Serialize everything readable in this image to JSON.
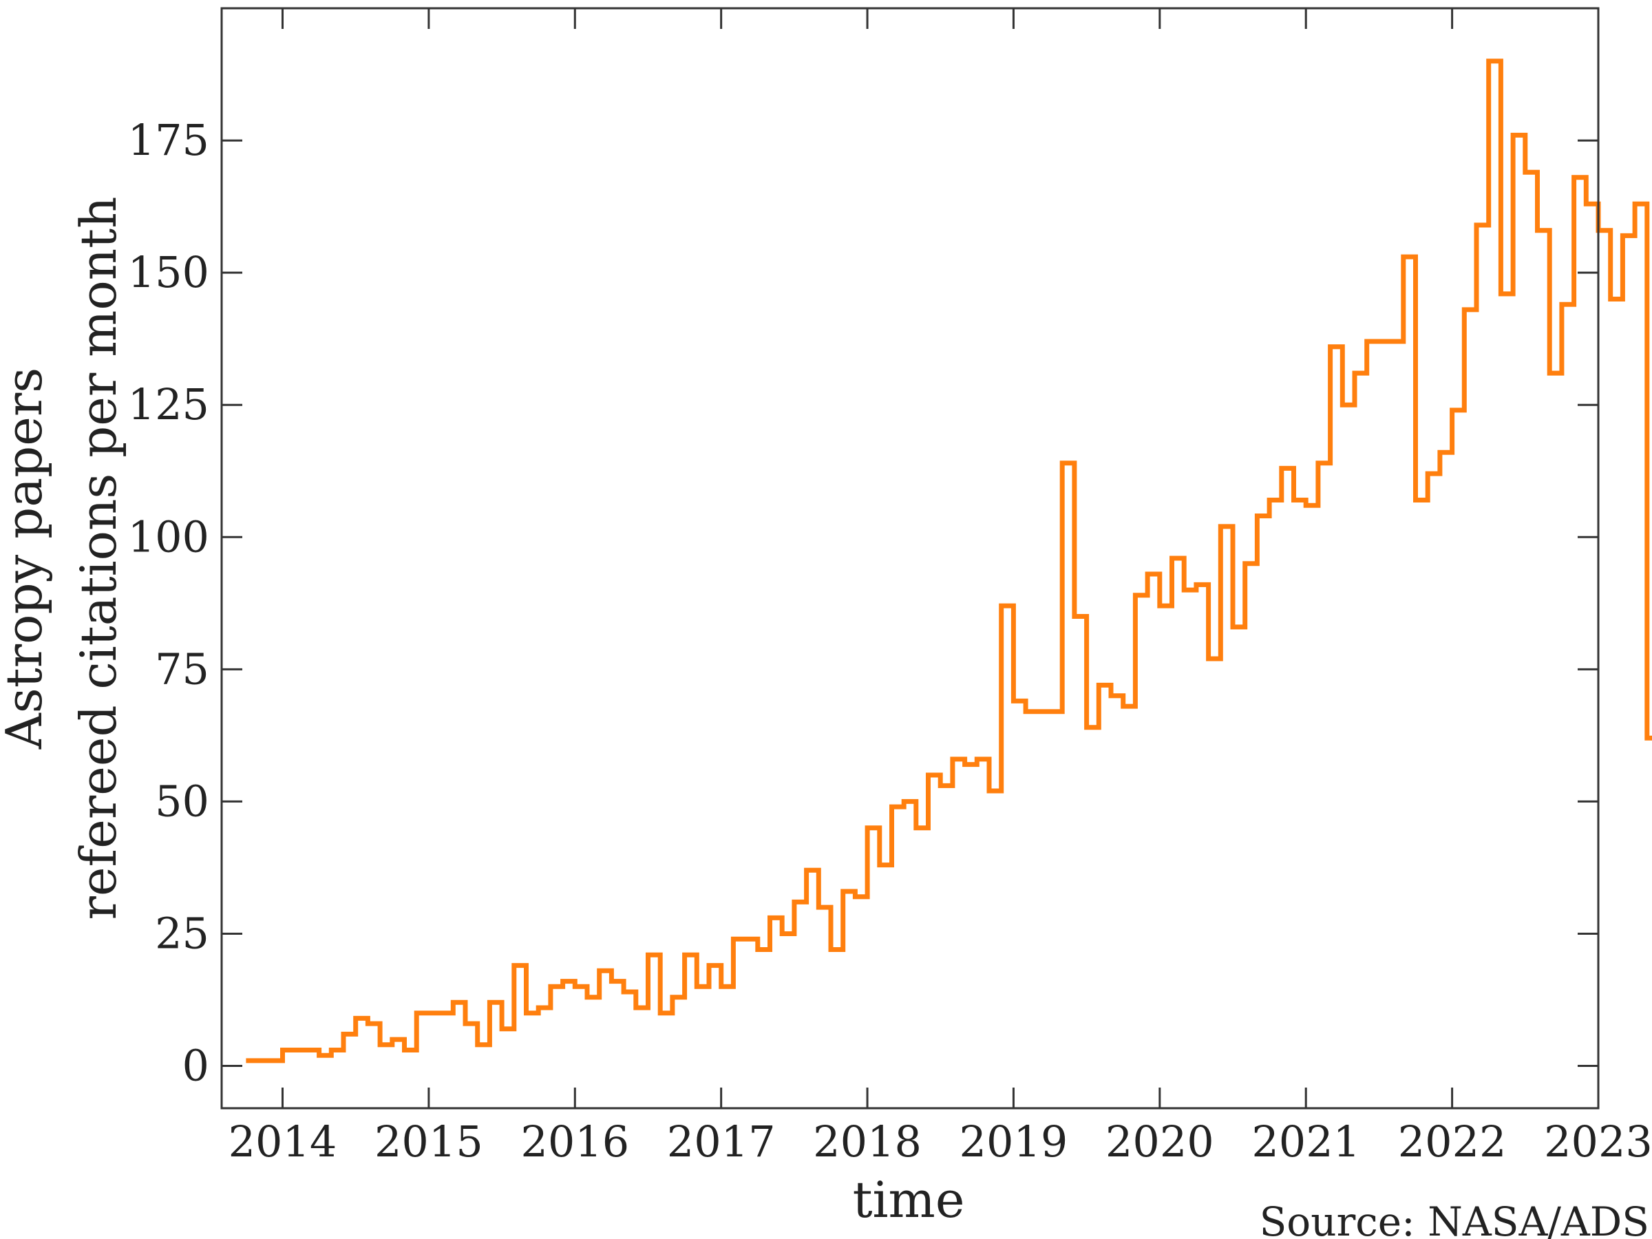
{
  "chart_data": {
    "type": "line",
    "drawstyle": "steps-post",
    "xlabel": "time",
    "ylabel_lines": [
      "Astropy papers",
      "refereed citations per month"
    ],
    "source": "Source: NASA/ADS",
    "x_ticks": [
      "2014",
      "2015",
      "2016",
      "2017",
      "2018",
      "2019",
      "2020",
      "2021",
      "2022",
      "2023"
    ],
    "y_ticks": [
      "0",
      "25",
      "50",
      "75",
      "100",
      "125",
      "150",
      "175"
    ],
    "xlim": [
      "2013-08",
      "2023-01"
    ],
    "ylim": [
      -8,
      200
    ],
    "grid": false,
    "line_color": "#ff7f0e",
    "series": [
      {
        "start": "2013-10",
        "step": "month",
        "values": [
          1,
          1,
          1,
          3,
          3,
          3,
          2,
          3,
          6,
          9,
          8,
          4,
          5,
          3,
          10,
          10,
          10,
          12,
          8,
          4,
          12,
          7,
          19,
          10,
          11,
          15,
          16,
          15,
          13,
          18,
          16,
          14,
          11,
          21,
          10,
          13,
          21,
          15,
          19,
          15,
          24,
          24,
          22,
          28,
          25,
          31,
          37,
          30,
          22,
          33,
          32,
          45,
          38,
          49,
          50,
          45,
          55,
          53,
          58,
          57,
          58,
          52,
          87,
          69,
          67,
          67,
          67,
          114,
          85,
          64,
          72,
          70,
          68,
          89,
          93,
          87,
          96,
          90,
          91,
          77,
          102,
          83,
          95,
          104,
          107,
          113,
          107,
          106,
          114,
          136,
          125,
          131,
          137,
          137,
          137,
          153,
          107,
          112,
          116,
          124,
          143,
          159,
          190,
          146,
          176,
          169,
          158,
          131,
          144,
          168,
          163,
          158,
          145,
          157,
          163,
          62
        ]
      }
    ]
  }
}
